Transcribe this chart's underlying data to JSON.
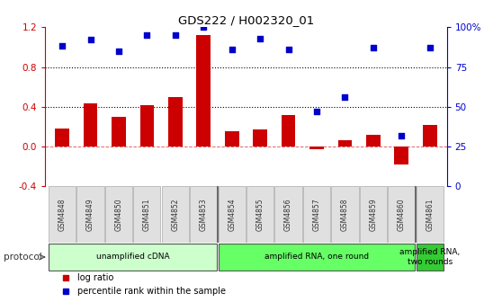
{
  "title": "GDS222 / H002320_01",
  "samples": [
    "GSM4848",
    "GSM4849",
    "GSM4850",
    "GSM4851",
    "GSM4852",
    "GSM4853",
    "GSM4854",
    "GSM4855",
    "GSM4856",
    "GSM4857",
    "GSM4858",
    "GSM4859",
    "GSM4860",
    "GSM4861"
  ],
  "log_ratio": [
    0.18,
    0.43,
    0.3,
    0.42,
    0.5,
    1.12,
    0.15,
    0.17,
    0.32,
    -0.03,
    0.06,
    0.12,
    -0.18,
    0.22
  ],
  "percentile": [
    88,
    92,
    85,
    95,
    95,
    100,
    86,
    93,
    86,
    47,
    56,
    87,
    32,
    87
  ],
  "bar_color": "#cc0000",
  "dot_color": "#0000cc",
  "ylim_left": [
    -0.4,
    1.2
  ],
  "ylim_right": [
    0,
    100
  ],
  "yticks_left": [
    -0.4,
    0.0,
    0.4,
    0.8,
    1.2
  ],
  "yticks_right": [
    0,
    25,
    50,
    75,
    100
  ],
  "ytick_labels_right": [
    "0",
    "25",
    "50",
    "75",
    "100%"
  ],
  "hlines": [
    0.4,
    0.8
  ],
  "protocol_groups": [
    {
      "label": "unamplified cDNA",
      "start": 0,
      "end": 5,
      "color": "#ccffcc"
    },
    {
      "label": "amplified RNA, one round",
      "start": 6,
      "end": 12,
      "color": "#66ff66"
    },
    {
      "label": "amplified RNA,\ntwo rounds",
      "start": 13,
      "end": 13,
      "color": "#33cc33"
    }
  ],
  "legend_items": [
    {
      "label": "log ratio",
      "color": "#cc0000",
      "marker": "s"
    },
    {
      "label": "percentile rank within the sample",
      "color": "#0000cc",
      "marker": "s"
    }
  ],
  "protocol_label": "protocol",
  "background_color": "#ffffff",
  "grid_color": "#cccccc",
  "xlabel_color": "#555555",
  "bar_width": 0.5
}
